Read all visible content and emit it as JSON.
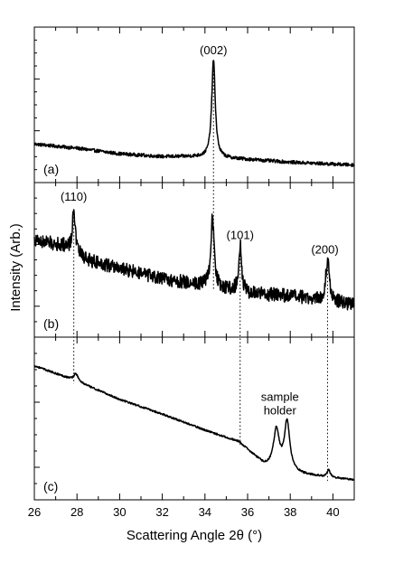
{
  "chart_data": {
    "type": "line",
    "xlabel": "Scattering Angle 2θ (°)",
    "ylabel": "Intensity (Arb.)",
    "xlim": [
      26,
      41
    ],
    "x_ticks": [
      26,
      28,
      30,
      32,
      34,
      36,
      38,
      40
    ],
    "x_tick_labels": [
      "26",
      "28",
      "30",
      "32",
      "34",
      "36",
      "38",
      "40"
    ],
    "y_tick_labels": "none",
    "grid": false,
    "legend": "none",
    "panels": [
      {
        "id": "(a)",
        "ylim": [
          0,
          1
        ],
        "baseline": [
          [
            26.0,
            0.22
          ],
          [
            28.0,
            0.19
          ],
          [
            30.0,
            0.15
          ],
          [
            32.0,
            0.13
          ],
          [
            33.5,
            0.13
          ],
          [
            36.0,
            0.11
          ],
          [
            38.0,
            0.09
          ],
          [
            41.0,
            0.07
          ]
        ],
        "noise": 0.012,
        "peaks": [
          {
            "center": 34.4,
            "height": 0.7,
            "width": 0.1,
            "label": "(002)"
          }
        ]
      },
      {
        "id": "(b)",
        "ylim": [
          0,
          1
        ],
        "baseline": [
          [
            26.0,
            0.64
          ],
          [
            27.5,
            0.6
          ],
          [
            28.5,
            0.5
          ],
          [
            30.0,
            0.44
          ],
          [
            32.0,
            0.36
          ],
          [
            34.0,
            0.32
          ],
          [
            36.0,
            0.26
          ],
          [
            38.0,
            0.24
          ],
          [
            41.0,
            0.18
          ]
        ],
        "noise": 0.05,
        "peaks": [
          {
            "center": 27.85,
            "height": 0.32,
            "width": 0.07,
            "label": "(110)"
          },
          {
            "center": 34.35,
            "height": 0.5,
            "width": 0.09,
            "label": ""
          },
          {
            "center": 35.65,
            "height": 0.34,
            "width": 0.08,
            "label": "(101)"
          },
          {
            "center": 39.75,
            "height": 0.3,
            "width": 0.1,
            "label": "(200)"
          }
        ]
      },
      {
        "id": "(c)",
        "ylim": [
          0,
          1
        ],
        "baseline": [
          [
            26.0,
            0.86
          ],
          [
            27.9,
            0.76
          ],
          [
            30.0,
            0.63
          ],
          [
            32.0,
            0.53
          ],
          [
            34.0,
            0.42
          ],
          [
            35.6,
            0.34
          ],
          [
            36.8,
            0.18
          ],
          [
            38.5,
            0.12
          ],
          [
            39.7,
            0.1
          ],
          [
            41.0,
            0.08
          ]
        ],
        "noise": 0.006,
        "peaks": [
          {
            "center": 27.95,
            "height": 0.05,
            "width": 0.12,
            "label": ""
          },
          {
            "center": 37.35,
            "height": 0.26,
            "width": 0.16,
            "label": ""
          },
          {
            "center": 37.85,
            "height": 0.33,
            "width": 0.15,
            "label": ""
          },
          {
            "center": 39.8,
            "height": 0.05,
            "width": 0.08,
            "label": ""
          }
        ],
        "annotation": "sample holder"
      }
    ],
    "reference_lines": [
      {
        "x": 34.4,
        "from_panel": 0,
        "to_panel": 1
      },
      {
        "x": 27.85,
        "from_panel": 1,
        "to_panel": 2
      },
      {
        "x": 35.65,
        "from_panel": 1,
        "to_panel": 2
      },
      {
        "x": 39.75,
        "from_panel": 1,
        "to_panel": 2
      }
    ]
  }
}
